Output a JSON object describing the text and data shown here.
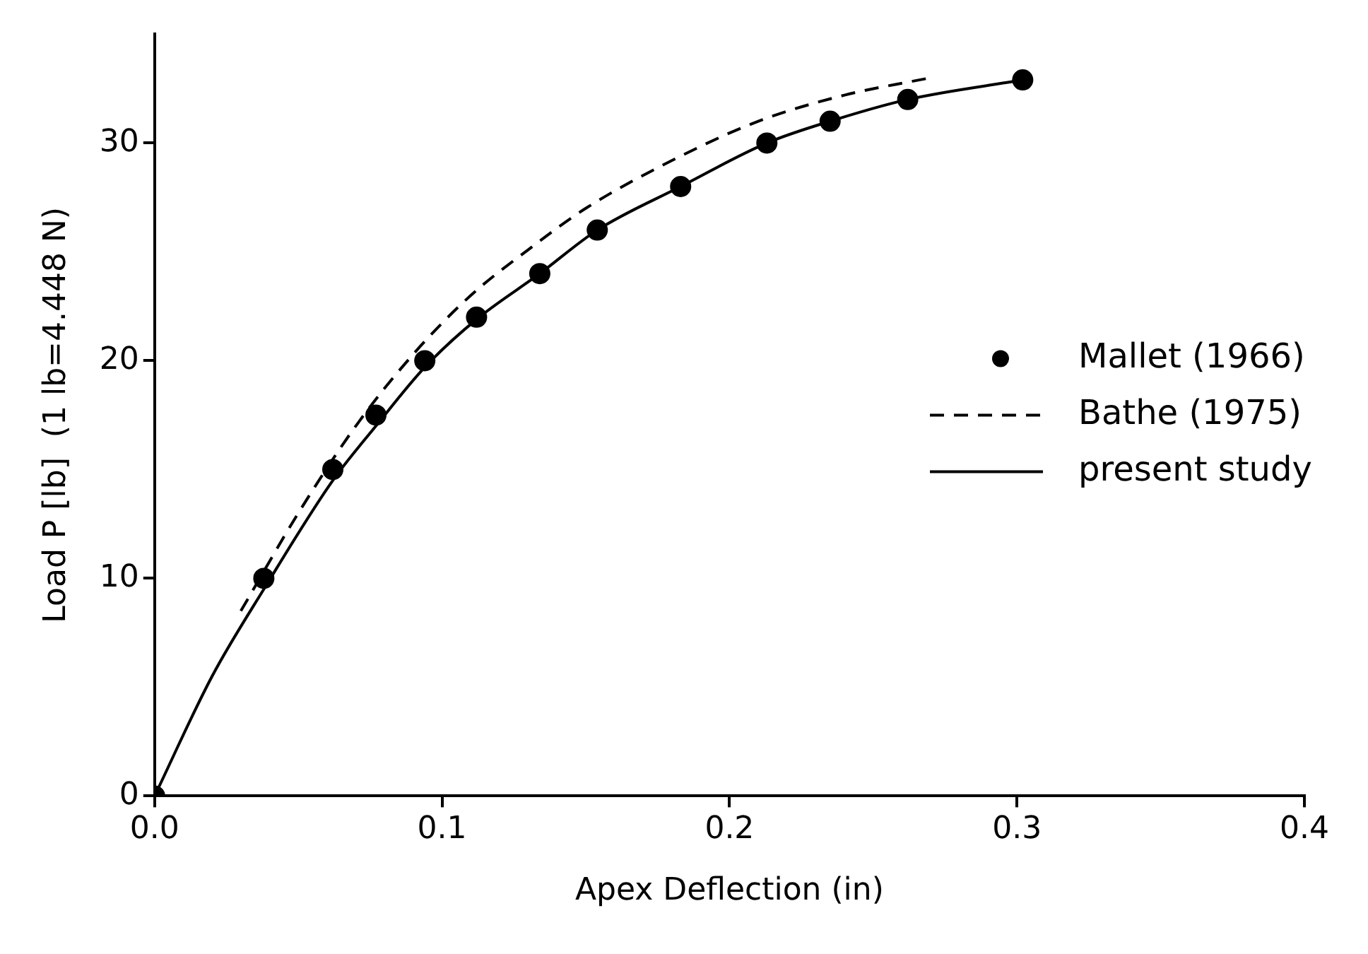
{
  "chart_data": {
    "type": "line",
    "xlabel": "Apex Deflection (in)",
    "ylabel": "Load P [lb]  (1 lb=4.448 N)",
    "xlim": [
      0,
      0.4
    ],
    "xticks": [
      {
        "value": 0,
        "label": "0.0"
      },
      0.1,
      0.2,
      0.3,
      0.4
    ],
    "ylim": [
      0,
      35
    ],
    "yticks": [
      0,
      10,
      20,
      30
    ],
    "grid": false,
    "legend": "right",
    "series": [
      {
        "name": "Mallet (1966)",
        "type": "scatter",
        "marker": "circle",
        "color": "#000000",
        "x": [
          0,
          0.038,
          0.062,
          0.077,
          0.094,
          0.112,
          0.134,
          0.154,
          0.183,
          0.213,
          0.235,
          0.262,
          0.302
        ],
        "values": [
          0,
          10,
          15,
          17.5,
          20,
          22,
          24,
          26,
          28,
          30,
          31,
          32,
          32.9
        ]
      },
      {
        "name": "Bathe (1975)",
        "type": "line",
        "line_style": "dashed",
        "color": "#000000",
        "x": [
          0.03,
          0.05,
          0.07,
          0.09,
          0.11,
          0.13,
          0.15,
          0.18,
          0.21,
          0.24,
          0.27
        ],
        "values": [
          8.5,
          13,
          17,
          20.3,
          23,
          25.1,
          27,
          29.2,
          31,
          32.2,
          33
        ]
      },
      {
        "name": "present study",
        "type": "line",
        "line_style": "solid",
        "color": "#000000",
        "x": [
          0,
          0.02,
          0.038,
          0.062,
          0.077,
          0.094,
          0.112,
          0.134,
          0.154,
          0.183,
          0.213,
          0.235,
          0.262,
          0.302
        ],
        "values": [
          0,
          5.5,
          9.5,
          14.5,
          17,
          19.7,
          21.9,
          24,
          26,
          28,
          30,
          31,
          32,
          32.9
        ]
      }
    ]
  }
}
